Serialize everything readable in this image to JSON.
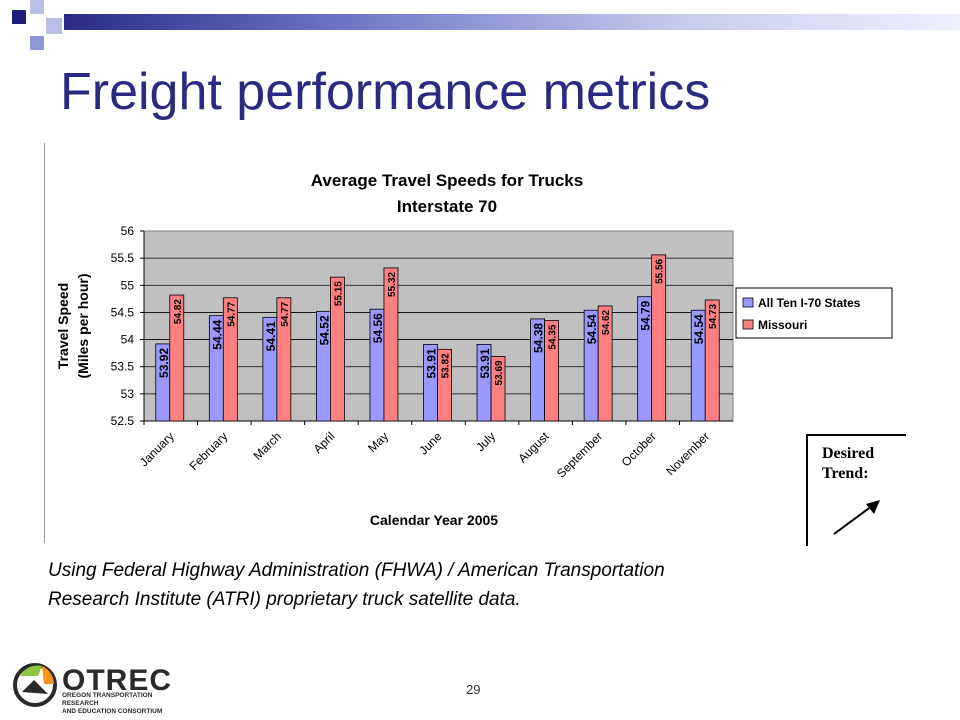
{
  "slide": {
    "title": "Freight performance metrics",
    "caption_line1": "Using Federal Highway Administration (FHWA)  / American Transportation",
    "caption_line2": "Research Institute (ATRI) proprietary truck satellite data.",
    "page_number": "29",
    "desired_label_1": "Desired",
    "desired_label_2": "Trend:",
    "logo_text": "OTREC",
    "logo_subtext_1": "OREGON TRANSPORTATION RESEARCH",
    "logo_subtext_2": "AND EDUCATION CONSORTIUM",
    "logo_icon": "otrec-logo-icon",
    "desired_icon": "arrow-up-right-icon"
  },
  "chart_data": {
    "type": "bar",
    "title": "Average Travel Speeds for Trucks",
    "subtitle": "Interstate 70",
    "xlabel": "Calendar Year 2005",
    "ylabel_1": "Travel Speed",
    "ylabel_2": "(Miles per hour)",
    "ylim": [
      52.5,
      56
    ],
    "yticks": [
      "52.5",
      "53",
      "53.5",
      "54",
      "54.5",
      "55",
      "55.5",
      "56"
    ],
    "grid": true,
    "legend_position": "right",
    "plot_background": "#c0c0c0",
    "categories": [
      "January",
      "February",
      "March",
      "April",
      "May",
      "June",
      "July",
      "August",
      "September",
      "October",
      "November"
    ],
    "series": [
      {
        "name": "All Ten I-70 States",
        "color": "#9999ff",
        "values": [
          53.92,
          54.44,
          54.41,
          54.52,
          54.56,
          53.91,
          53.91,
          54.38,
          54.54,
          54.79,
          54.54
        ],
        "labels": [
          "53.92",
          "54.44",
          "54.41",
          "54.52",
          "54.56",
          "53.91",
          "53.91",
          "54.38",
          "54.54",
          "54.79",
          "54.54"
        ]
      },
      {
        "name": "Missouri",
        "color": "#ff8080",
        "values": [
          54.82,
          54.77,
          54.77,
          55.15,
          55.32,
          53.82,
          53.69,
          54.35,
          54.62,
          55.56,
          54.73
        ],
        "labels": [
          "54.82",
          "54.77",
          "54.77",
          "55.15",
          "55.32",
          "53.82",
          "53.69",
          "54.35",
          "54.62",
          "55.56",
          "54.73"
        ]
      }
    ]
  }
}
